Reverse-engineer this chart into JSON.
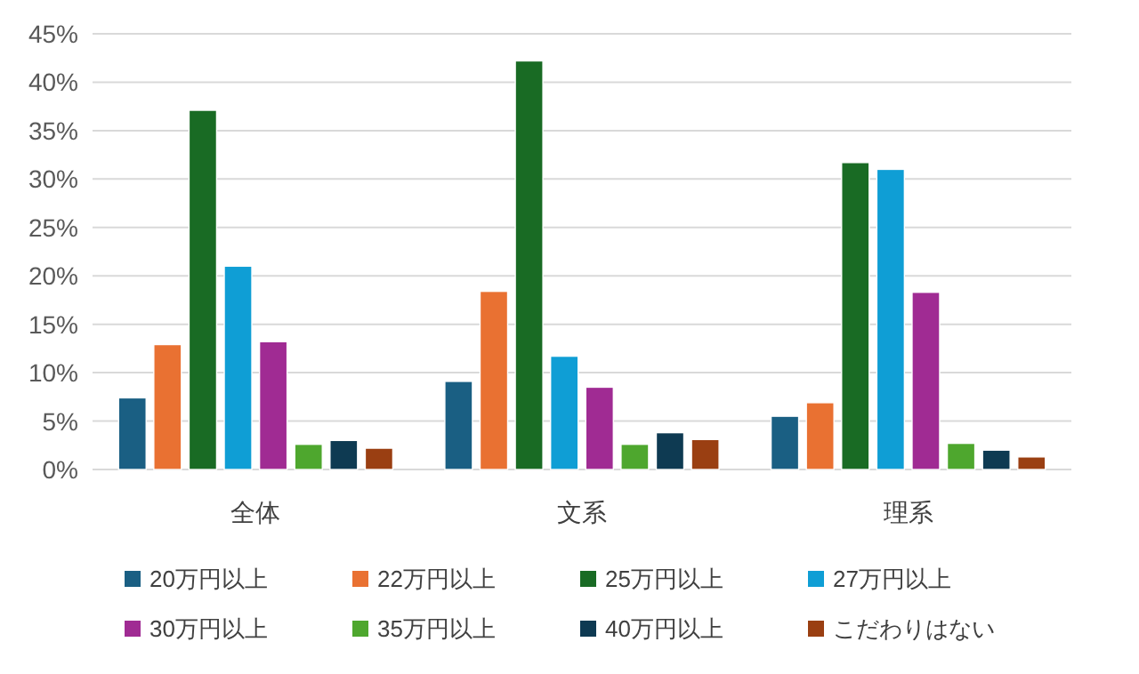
{
  "chart_data": {
    "type": "bar",
    "categories": [
      "全体",
      "文系",
      "理系"
    ],
    "series": [
      {
        "name": "20万円以上",
        "color": "#1a5f83",
        "values": [
          7.4,
          9.1,
          5.5
        ]
      },
      {
        "name": "22万円以上",
        "color": "#e97132",
        "values": [
          12.9,
          18.4,
          6.9
        ]
      },
      {
        "name": "25万円以上",
        "color": "#196b24",
        "values": [
          37.1,
          42.2,
          31.7
        ]
      },
      {
        "name": "27万円以上",
        "color": "#0f9ed5",
        "values": [
          21.0,
          11.7,
          31.0
        ]
      },
      {
        "name": "30万円以上",
        "color": "#a02b93",
        "values": [
          13.2,
          8.5,
          18.3
        ]
      },
      {
        "name": "35万円以上",
        "color": "#4ea72e",
        "values": [
          2.6,
          2.6,
          2.7
        ]
      },
      {
        "name": "40万円以上",
        "color": "#0e3a52",
        "values": [
          3.0,
          3.8,
          2.0
        ]
      },
      {
        "name": "こだわりはない",
        "color": "#9a3f12",
        "values": [
          2.2,
          3.1,
          1.3
        ]
      }
    ],
    "ylim": [
      0,
      45
    ],
    "yticks": [
      {
        "value": 0,
        "label": "0%"
      },
      {
        "value": 5,
        "label": "5%"
      },
      {
        "value": 10,
        "label": "10%"
      },
      {
        "value": 15,
        "label": "15%"
      },
      {
        "value": 20,
        "label": "20%"
      },
      {
        "value": 25,
        "label": "25%"
      },
      {
        "value": 30,
        "label": "30%"
      },
      {
        "value": 35,
        "label": "35%"
      },
      {
        "value": 40,
        "label": "40%"
      },
      {
        "value": 45,
        "label": "45%"
      }
    ],
    "grid": "y",
    "legend": "bottom"
  }
}
